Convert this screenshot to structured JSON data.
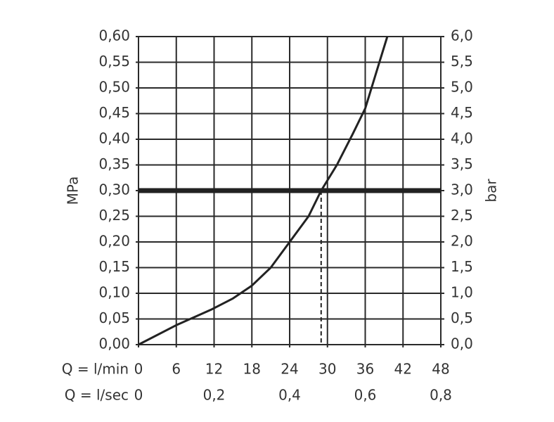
{
  "chart_data": {
    "type": "line",
    "ylabel": "MPa",
    "y2label": "bar",
    "xlabel": "Q = l/min",
    "x2label": "Q = l/sec",
    "x": [
      0,
      6,
      11.5,
      15,
      18,
      21,
      24,
      27,
      29,
      31.5,
      34,
      36,
      38,
      39.5
    ],
    "series": [
      {
        "color": "#222222",
        "values": [
          0,
          0.038,
          0.068,
          0.09,
          0.115,
          0.15,
          0.2,
          0.25,
          0.3,
          0.35,
          0.41,
          0.46,
          0.54,
          0.6
        ]
      }
    ],
    "reference_y": 0.3,
    "reference_x": 29,
    "xlim": [
      0,
      48
    ],
    "xticks": [
      0,
      6,
      12,
      18,
      24,
      30,
      36,
      42,
      48
    ],
    "x2lim": [
      0,
      0.8
    ],
    "x2ticks": [
      0,
      {
        "value": 0.2,
        "label": "0,2"
      },
      {
        "value": 0.4,
        "label": "0,4"
      },
      {
        "value": 0.6,
        "label": "0,6"
      },
      {
        "value": 0.8,
        "label": "0,8"
      }
    ],
    "ylim": [
      0,
      0.6
    ],
    "yticks": [
      {
        "value": 0,
        "label": "0,00"
      },
      {
        "value": 0.05,
        "label": "0,05"
      },
      {
        "value": 0.1,
        "label": "0,10"
      },
      {
        "value": 0.15,
        "label": "0,15"
      },
      {
        "value": 0.2,
        "label": "0,20"
      },
      {
        "value": 0.25,
        "label": "0,25"
      },
      {
        "value": 0.3,
        "label": "0,30"
      },
      {
        "value": 0.35,
        "label": "0,35"
      },
      {
        "value": 0.4,
        "label": "0,40"
      },
      {
        "value": 0.45,
        "label": "0,45"
      },
      {
        "value": 0.5,
        "label": "0,50"
      },
      {
        "value": 0.55,
        "label": "0,55"
      },
      {
        "value": 0.6,
        "label": "0,60"
      }
    ],
    "y2lim": [
      0,
      6
    ],
    "y2ticks": [
      {
        "value": 0,
        "label": "0,0"
      },
      {
        "value": 0.5,
        "label": "0,5"
      },
      {
        "value": 1,
        "label": "1,0"
      },
      {
        "value": 1.5,
        "label": "1,5"
      },
      {
        "value": 2,
        "label": "2,0"
      },
      {
        "value": 2.5,
        "label": "2,5"
      },
      {
        "value": 3,
        "label": "3,0"
      },
      {
        "value": 3.5,
        "label": "3,5"
      },
      {
        "value": 4,
        "label": "4,0"
      },
      {
        "value": 4.5,
        "label": "4,5"
      },
      {
        "value": 5,
        "label": "5,0"
      },
      {
        "value": 5.5,
        "label": "5,5"
      },
      {
        "value": 6,
        "label": "6,0"
      }
    ],
    "grid": true
  }
}
